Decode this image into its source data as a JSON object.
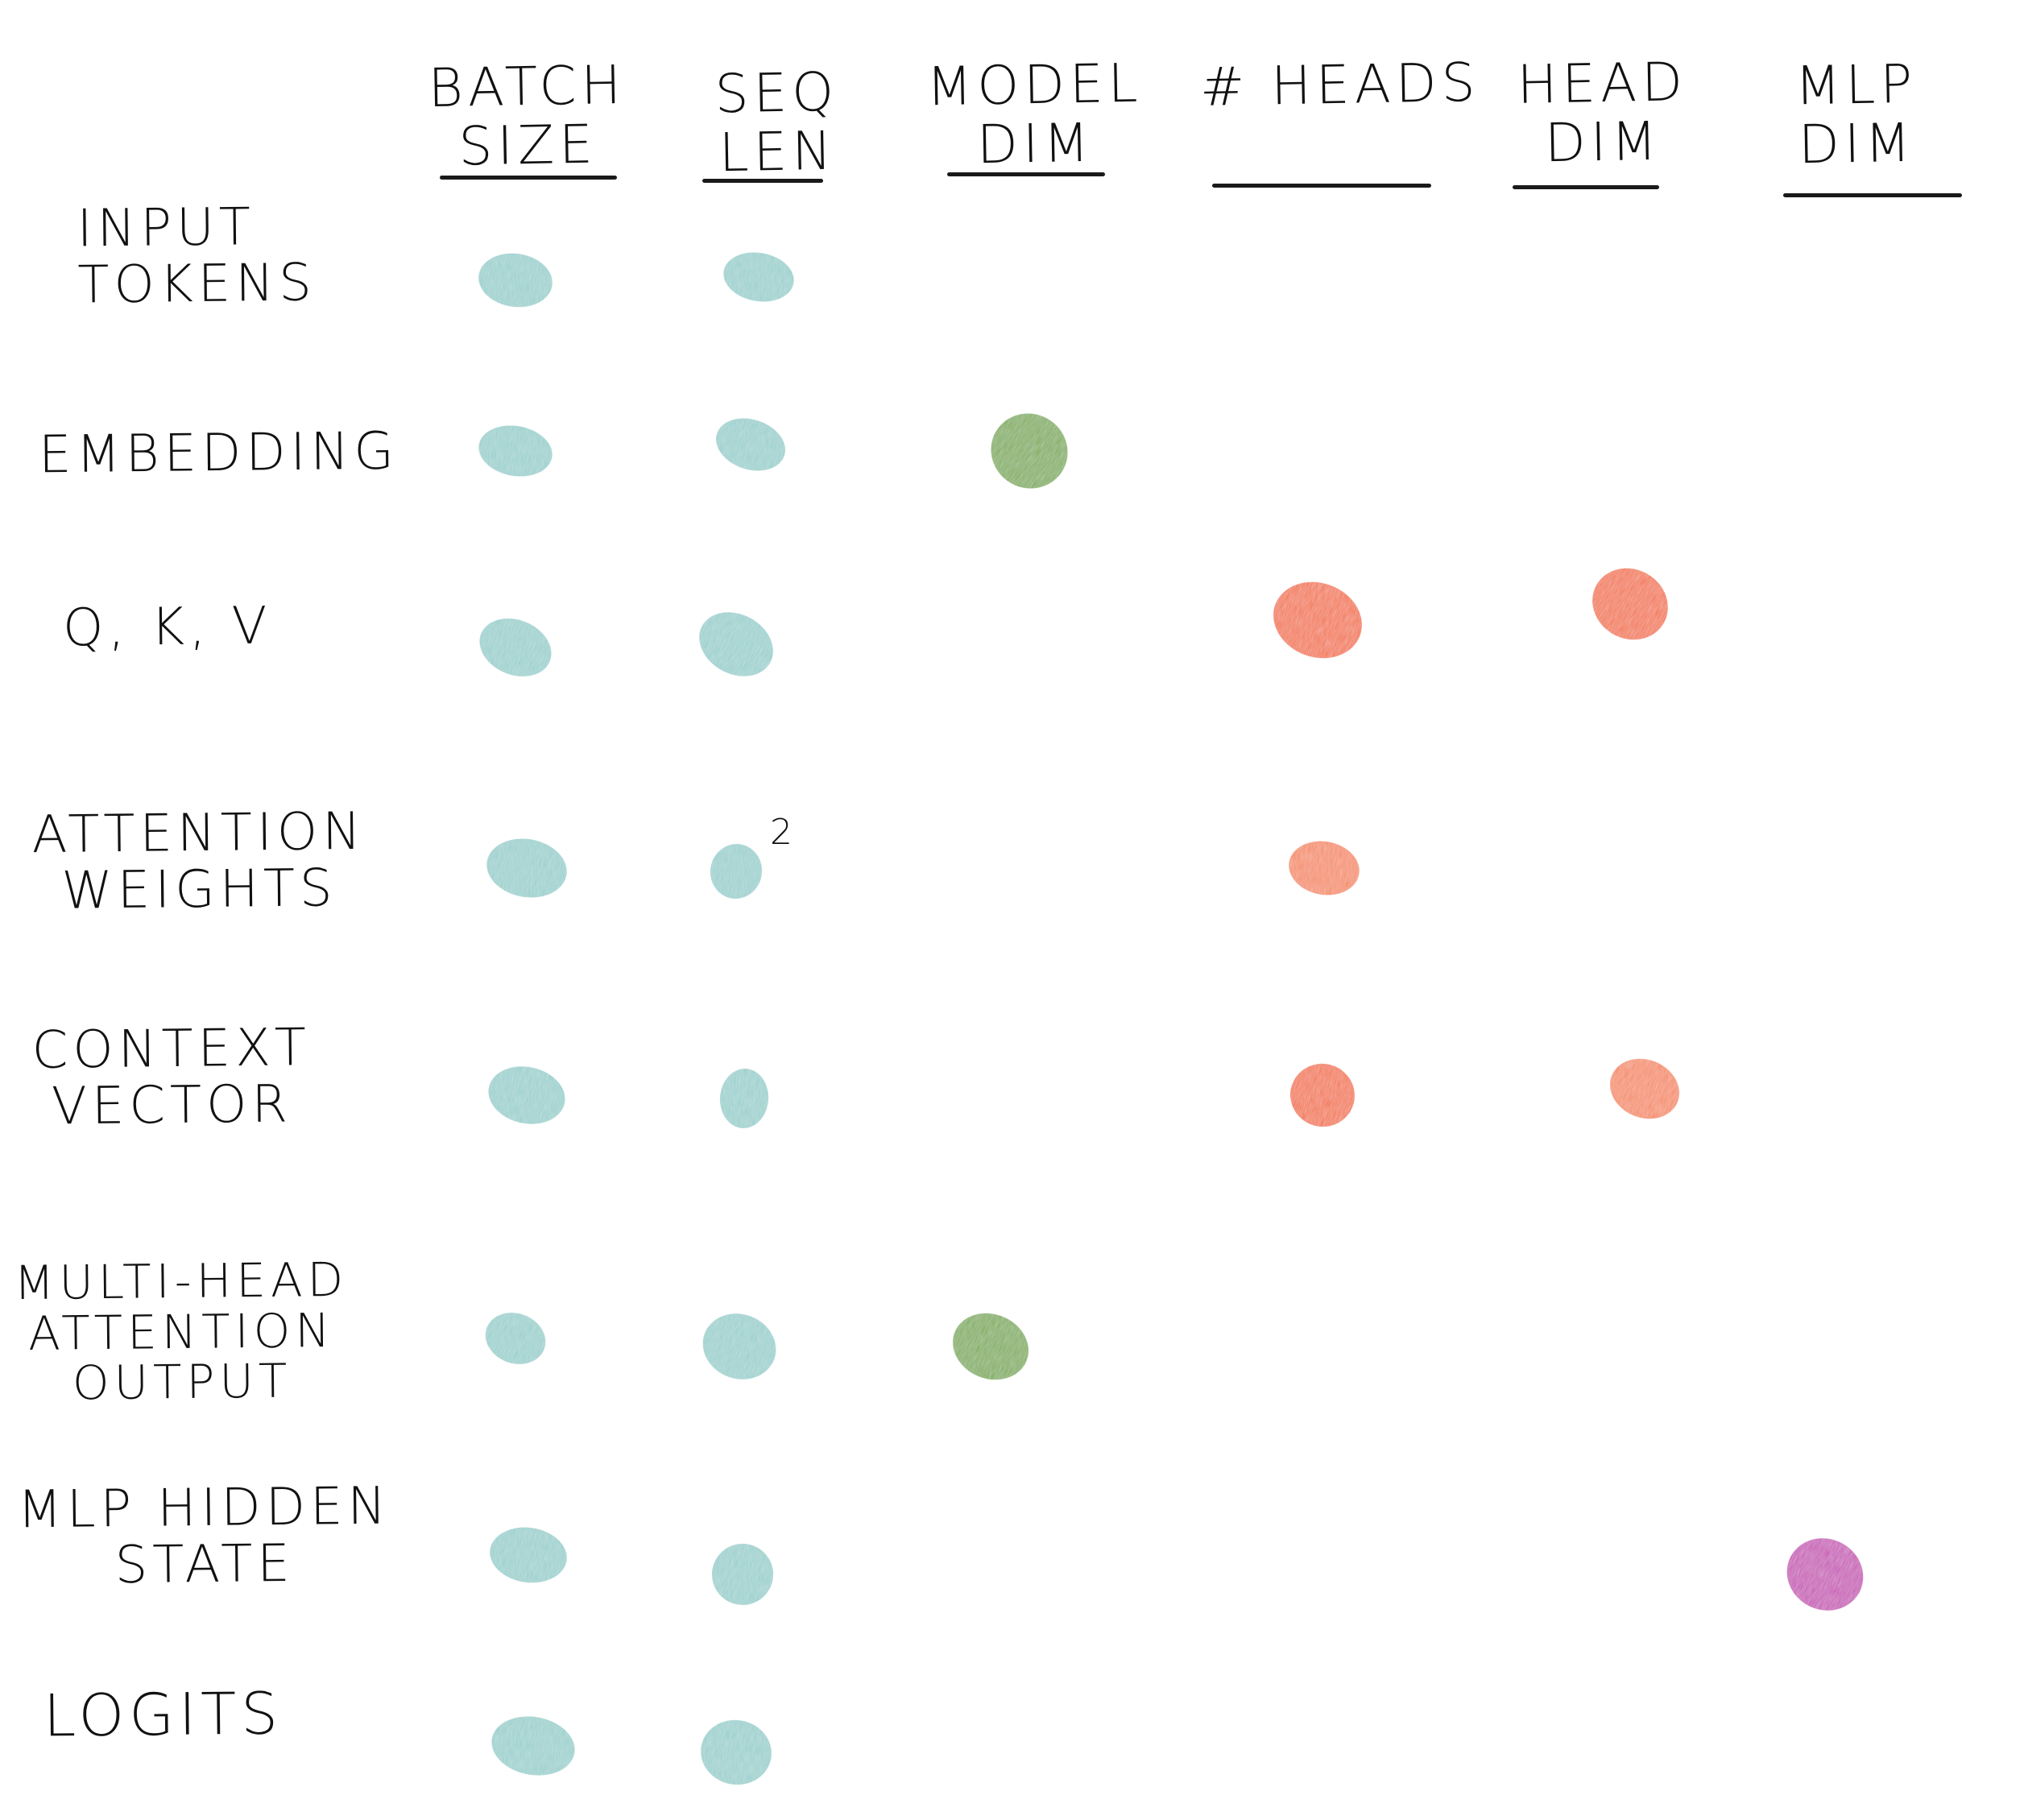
{
  "title": "",
  "columns": [
    {
      "id": "batch",
      "lines": [
        "BATCH",
        "SIZE"
      ]
    },
    {
      "id": "seq",
      "lines": [
        "SEQ",
        "LEN"
      ]
    },
    {
      "id": "model",
      "lines": [
        "MODEL",
        "DIM"
      ]
    },
    {
      "id": "heads",
      "lines": [
        "# HEADS"
      ]
    },
    {
      "id": "headdim",
      "lines": [
        "HEAD",
        "DIM"
      ]
    },
    {
      "id": "mlp",
      "lines": [
        "MLP",
        "DIM"
      ]
    }
  ],
  "rows": [
    {
      "id": "input-tokens",
      "lines": [
        "INPUT",
        "TOKENS"
      ]
    },
    {
      "id": "embedding",
      "lines": [
        "EMBEDDING"
      ]
    },
    {
      "id": "qkv",
      "lines": [
        "Q, K, V"
      ]
    },
    {
      "id": "attention-weights",
      "lines": [
        "ATTENTION",
        "WEIGHTS"
      ]
    },
    {
      "id": "context-vector",
      "lines": [
        "CONTEXT",
        "VECTOR"
      ]
    },
    {
      "id": "multi-head-attention-output",
      "lines": [
        "MULTI-HEAD",
        "ATTENTION",
        "OUTPUT"
      ]
    },
    {
      "id": "mlp-hidden-state",
      "lines": [
        "MLP HIDDEN",
        "STATE"
      ]
    },
    {
      "id": "logits",
      "lines": [
        "LOGITS"
      ]
    }
  ],
  "superscripts": {
    "attention-weights.seq": "2"
  },
  "colors": {
    "teal": "#93cdca",
    "green": "#74a84a",
    "orange": "#f26a3a",
    "light_orange": "#f48358",
    "magenta": "#c43fb1",
    "ink": "#1a1a1a"
  },
  "matrix": {
    "input-tokens": {
      "batch": "teal",
      "seq": "teal"
    },
    "embedding": {
      "batch": "teal",
      "seq": "teal",
      "model": "green"
    },
    "qkv": {
      "batch": "teal",
      "seq": "teal",
      "heads": "orange",
      "headdim": "orange"
    },
    "attention-weights": {
      "batch": "teal",
      "seq": "teal",
      "heads": "light_orange"
    },
    "context-vector": {
      "batch": "teal",
      "seq": "teal",
      "heads": "orange",
      "headdim": "light_orange"
    },
    "multi-head-attention-output": {
      "batch": "teal",
      "seq": "teal",
      "model": "green"
    },
    "mlp-hidden-state": {
      "batch": "teal",
      "seq": "teal",
      "mlp": "magenta"
    },
    "logits": {
      "batch": "teal",
      "seq": "teal"
    }
  }
}
